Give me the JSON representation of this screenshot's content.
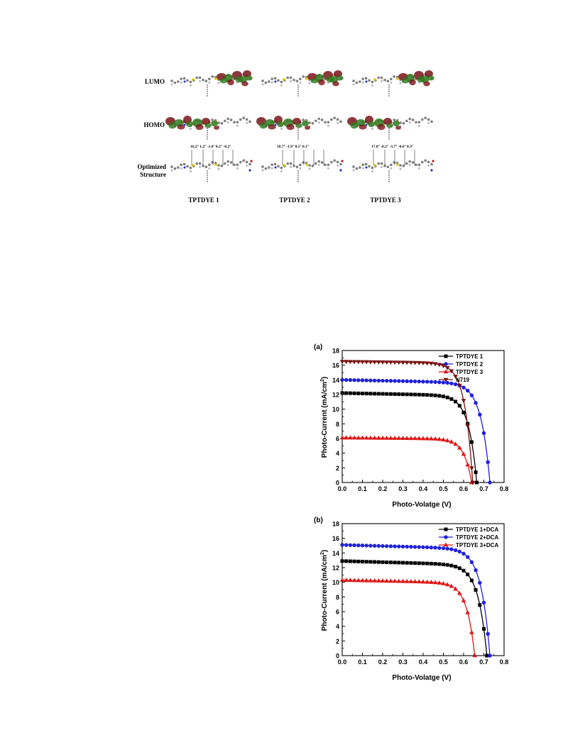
{
  "molecules": {
    "row_labels": [
      "LUMO",
      "HOMO",
      "Optimized Structure"
    ],
    "dyes": [
      {
        "name": "TPTDYE 1",
        "angles": "16.2°  1.2°  -1.6°  0.2°  -0.2°"
      },
      {
        "name": "TPTDYE 2",
        "angles": "18.7° -1.9°   0.1°  0.1°"
      },
      {
        "name": "TPTDYE 3",
        "angles": "17.8°  -0.2°  -3.7°  -0.6°  0.3°"
      }
    ],
    "colors": {
      "orbital_positive": "#7a1418",
      "orbital_negative": "#2f7a1e",
      "sulfur": "#e0c400",
      "nitrogen": "#2030c0",
      "oxygen": "#d01010"
    }
  },
  "chart_data": [
    {
      "type": "line",
      "panel_label": "(a)",
      "xlabel": "Photo-Volatge (V)",
      "ylabel": "Photo-Current (mA/cm2)",
      "ylabel_main": "Photo-Current (mA/cm",
      "ylabel_sup": "2",
      "ylabel_end": ")",
      "xlim": [
        0.0,
        0.8
      ],
      "ylim": [
        0,
        18
      ],
      "xticks": [
        "0.0",
        "0.1",
        "0.2",
        "0.3",
        "0.4",
        "0.5",
        "0.6",
        "0.7",
        "0.8"
      ],
      "yticks": [
        "0",
        "2",
        "4",
        "6",
        "8",
        "10",
        "12",
        "14",
        "16",
        "18"
      ],
      "legend_position": "top-right",
      "series": [
        {
          "name": "TPTDYE 1",
          "color": "#000000",
          "marker": "square",
          "isc": 12.2,
          "voc": 0.665,
          "v0": 0.34,
          "drop": 0.5,
          "x": [
            0.0,
            0.1,
            0.2,
            0.3,
            0.4,
            0.5,
            0.55,
            0.6,
            0.63,
            0.65,
            0.665
          ],
          "y": [
            12.2,
            12.1,
            11.9,
            11.7,
            11.4,
            10.6,
            9.9,
            7.4,
            4.6,
            2.1,
            0.0
          ]
        },
        {
          "name": "TPTDYE 2",
          "color": "#1f1fe0",
          "marker": "circle",
          "isc": 14.0,
          "voc": 0.73,
          "v0": 0.38,
          "drop": 0.5,
          "x": [
            0.0,
            0.1,
            0.2,
            0.3,
            0.4,
            0.5,
            0.55,
            0.6,
            0.65,
            0.7,
            0.73
          ],
          "y": [
            14.0,
            13.9,
            13.85,
            13.8,
            13.7,
            13.4,
            13.0,
            12.2,
            9.8,
            5.0,
            0.0
          ]
        },
        {
          "name": "TPTDYE 3",
          "color": "#e01515",
          "marker": "triangle",
          "isc": 6.1,
          "voc": 0.64,
          "v0": 0.33,
          "drop": 0.4,
          "x": [
            0.0,
            0.1,
            0.2,
            0.3,
            0.4,
            0.5,
            0.55,
            0.6,
            0.62,
            0.64
          ],
          "y": [
            6.1,
            6.0,
            5.95,
            5.85,
            5.7,
            5.3,
            4.8,
            3.2,
            2.0,
            0.0
          ]
        },
        {
          "name": "N719",
          "color": "#7a1010",
          "marker": "triangle-down",
          "isc": 16.5,
          "voc": 0.645,
          "v0": 0.27,
          "drop": 0.25,
          "x": [
            0.0,
            0.1,
            0.2,
            0.3,
            0.4,
            0.45,
            0.5,
            0.55,
            0.6,
            0.63,
            0.645
          ],
          "y": [
            16.5,
            16.4,
            16.3,
            16.2,
            15.9,
            15.3,
            14.1,
            12.0,
            7.5,
            3.2,
            0.0
          ]
        }
      ]
    },
    {
      "type": "line",
      "panel_label": "(b)",
      "xlabel": "Photo-Volatge (V)",
      "ylabel": "Photo-Current (mA/cm2)",
      "ylabel_main": "Photo-Current (mA/cm",
      "ylabel_sup": "2",
      "ylabel_end": ")",
      "xlim": [
        0.0,
        0.8
      ],
      "ylim": [
        0,
        18
      ],
      "xticks": [
        "0.0",
        "0.1",
        "0.2",
        "0.3",
        "0.4",
        "0.5",
        "0.6",
        "0.7",
        "0.8"
      ],
      "yticks": [
        "0",
        "2",
        "4",
        "6",
        "8",
        "10",
        "12",
        "14",
        "16",
        "18"
      ],
      "legend_position": "top-right",
      "series": [
        {
          "name": "TPTDYE 1+DCA",
          "color": "#000000",
          "marker": "square",
          "isc": 12.9,
          "voc": 0.715,
          "v0": 0.27,
          "drop": 0.7,
          "x": [
            0.0,
            0.1,
            0.2,
            0.3,
            0.4,
            0.5,
            0.55,
            0.6,
            0.65,
            0.7,
            0.715
          ],
          "y": [
            12.9,
            12.8,
            12.7,
            12.5,
            12.2,
            11.4,
            10.5,
            8.9,
            6.2,
            1.8,
            0.0
          ]
        },
        {
          "name": "TPTDYE 2+DCA",
          "color": "#1f1fe0",
          "marker": "circle",
          "isc": 15.1,
          "voc": 0.73,
          "v0": 0.26,
          "drop": 0.6,
          "x": [
            0.0,
            0.1,
            0.2,
            0.3,
            0.4,
            0.5,
            0.55,
            0.6,
            0.65,
            0.7,
            0.73
          ],
          "y": [
            15.1,
            15.0,
            14.9,
            14.8,
            14.5,
            13.8,
            12.9,
            11.3,
            8.5,
            4.1,
            0.0
          ]
        },
        {
          "name": "TPTDYE 3+DCA",
          "color": "#e01515",
          "marker": "triangle",
          "isc": 10.3,
          "voc": 0.655,
          "v0": 0.26,
          "drop": 0.6,
          "x": [
            0.0,
            0.1,
            0.2,
            0.3,
            0.4,
            0.5,
            0.55,
            0.6,
            0.63,
            0.655
          ],
          "y": [
            10.3,
            10.2,
            10.1,
            9.9,
            9.6,
            8.6,
            7.5,
            5.3,
            3.1,
            0.0
          ]
        }
      ]
    }
  ]
}
